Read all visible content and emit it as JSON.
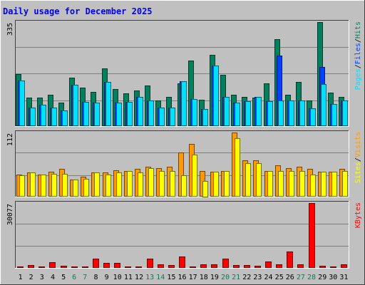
{
  "chart_data": {
    "type": "bar",
    "title": "Daily usage for December 2025",
    "x": [
      1,
      2,
      3,
      4,
      5,
      6,
      7,
      8,
      9,
      10,
      11,
      12,
      13,
      14,
      15,
      16,
      17,
      18,
      19,
      20,
      21,
      22,
      23,
      24,
      25,
      26,
      27,
      28,
      29,
      30,
      31
    ],
    "weekend_days": [
      6,
      7,
      13,
      14,
      20,
      21,
      27,
      28
    ],
    "panels": [
      {
        "id": "hits",
        "ymax_label": "335",
        "ylim": [
          0,
          335
        ],
        "legend": [
          "Pages",
          "/",
          "Files",
          "/",
          "Hits"
        ],
        "series": [
          {
            "name": "Hits",
            "color": "#00805c",
            "values": [
              167,
              92,
              92,
              100,
              76,
              156,
              124,
              110,
              187,
              120,
              106,
              114,
              130,
              82,
              95,
              138,
              210,
              85,
              230,
              165,
              100,
              95,
              92,
              138,
              280,
              100,
              142,
              82,
              335,
              108,
              94
            ]
          },
          {
            "name": "Files",
            "color": "#0040ff",
            "values": [
              146,
              60,
              68,
              60,
              50,
              132,
              78,
              75,
              142,
              75,
              78,
              95,
              82,
              60,
              60,
              145,
              88,
              56,
              195,
              95,
              76,
              80,
              95,
              80,
              228,
              82,
              82,
              58,
              190,
              72,
              82
            ]
          },
          {
            "name": "Pages",
            "color": "#00e0ff",
            "values": [
              146,
              60,
              68,
              60,
              50,
              132,
              78,
              75,
              142,
              75,
              78,
              95,
              82,
              60,
              60,
              145,
              88,
              56,
              195,
              95,
              76,
              80,
              95,
              80,
              82,
              82,
              82,
              58,
              135,
              72,
              82
            ]
          }
        ]
      },
      {
        "id": "visits",
        "ymax_label": "112",
        "ylim": [
          0,
          112
        ],
        "legend": [
          "Sites",
          "/",
          "Visits"
        ],
        "series": [
          {
            "name": "Visits",
            "color": "#ff9900",
            "values": [
              38,
              42,
              38,
              43,
              48,
              30,
              35,
              42,
              42,
              46,
              45,
              48,
              52,
              50,
              52,
              77,
              92,
              45,
              44,
              45,
              112,
              63,
              63,
              45,
              55,
              50,
              52,
              48,
              43,
              44,
              49
            ]
          },
          {
            "name": "Sites",
            "color": "#ffff00",
            "values": [
              37,
              42,
              38,
              40,
              40,
              30,
              31,
              42,
              39,
              42,
              45,
              42,
              50,
              45,
              45,
              37,
              73,
              28,
              44,
              45,
              102,
              58,
              58,
              45,
              45,
              45,
              45,
              38,
              43,
              44,
              45
            ]
          }
        ]
      },
      {
        "id": "kbytes",
        "ymax_label": "30077",
        "ylim": [
          0,
          30077
        ],
        "legend": [
          "KBytes"
        ],
        "series": [
          {
            "name": "KBytes",
            "color": "#ff0000",
            "values": [
              800,
              1200,
              800,
              2600,
              1000,
              800,
              800,
              4400,
              2400,
              2400,
              600,
              600,
              4300,
              1800,
              1400,
              5300,
              600,
              1600,
              1600,
              4400,
              1200,
              1300,
              900,
              3000,
              1800,
              7500,
              1800,
              30077,
              1000,
              800,
              1800
            ]
          }
        ]
      }
    ]
  },
  "colors": {
    "background": "#c0c0c0",
    "plot_bg": "#c0c0c0",
    "title": "#0000ff",
    "weekday_label": "#000000",
    "weekend_label": "#00805c",
    "gridline": "#808080",
    "legend_sep": "#000000"
  }
}
